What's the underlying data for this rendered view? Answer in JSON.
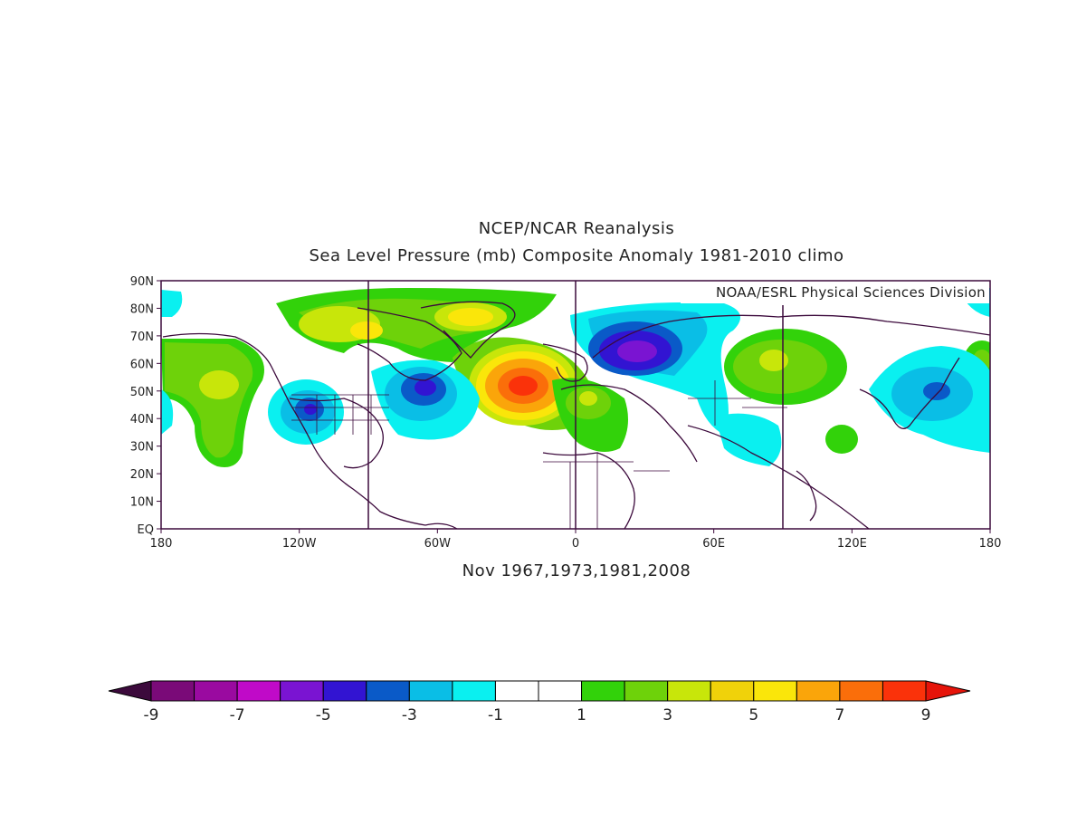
{
  "title_line1": "NCEP/NCAR Reanalysis",
  "title_line2": "Sea Level Pressure (mb) Composite Anomaly 1981-2010 climo",
  "credit": "NOAA/ESRL Physical Sciences Division",
  "caption": "Nov 1967,1973,1981,2008",
  "lat_labels": [
    "90N",
    "80N",
    "70N",
    "60N",
    "50N",
    "40N",
    "30N",
    "20N",
    "10N",
    "EQ"
  ],
  "lon_labels": [
    "180",
    "120W",
    "60W",
    "0",
    "60E",
    "120E",
    "180"
  ],
  "colorbar": {
    "colors": [
      "#3c0a3c",
      "#7a0a78",
      "#9a0aa0",
      "#c00ac8",
      "#7a14d2",
      "#3214d2",
      "#0a5ac8",
      "#0abee6",
      "#0af0f0",
      "#ffffff",
      "#ffffff",
      "#32d20a",
      "#6ed20a",
      "#c8e60a",
      "#f0d20a",
      "#fae60a",
      "#faa50a",
      "#fa6e0a",
      "#fa320a",
      "#e6140a"
    ],
    "tick_labels": [
      "-9",
      "-7",
      "-5",
      "-3",
      "-1",
      "1",
      "3",
      "5",
      "7",
      "9"
    ]
  }
}
